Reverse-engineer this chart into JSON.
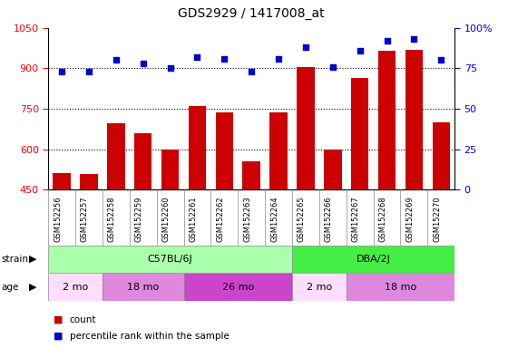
{
  "title": "GDS2929 / 1417008_at",
  "samples": [
    "GSM152256",
    "GSM152257",
    "GSM152258",
    "GSM152259",
    "GSM152260",
    "GSM152261",
    "GSM152262",
    "GSM152263",
    "GSM152264",
    "GSM152265",
    "GSM152266",
    "GSM152267",
    "GSM152268",
    "GSM152269",
    "GSM152270"
  ],
  "counts": [
    510,
    508,
    695,
    660,
    600,
    760,
    735,
    555,
    738,
    905,
    598,
    865,
    965,
    970,
    698
  ],
  "percentile": [
    73,
    73,
    80,
    78,
    75,
    82,
    81,
    73,
    81,
    88,
    76,
    86,
    92,
    93,
    80
  ],
  "ylim_left": [
    450,
    1050
  ],
  "ylim_right": [
    0,
    100
  ],
  "yticks_left": [
    450,
    600,
    750,
    900,
    1050
  ],
  "yticks_right": [
    0,
    25,
    50,
    75,
    100
  ],
  "ytick_labels_right": [
    "0",
    "25",
    "50",
    "75",
    "100%"
  ],
  "bar_color": "#cc0000",
  "dot_color": "#0000cc",
  "strain_groups": [
    {
      "label": "C57BL/6J",
      "start": 0,
      "end": 8,
      "color": "#aaffaa"
    },
    {
      "label": "DBA/2J",
      "start": 9,
      "end": 14,
      "color": "#44ee44"
    }
  ],
  "age_groups": [
    {
      "label": "2 mo",
      "start": 0,
      "end": 1,
      "color": "#ffddff"
    },
    {
      "label": "18 mo",
      "start": 2,
      "end": 4,
      "color": "#ee88ee"
    },
    {
      "label": "26 mo",
      "start": 5,
      "end": 8,
      "color": "#cc55cc"
    },
    {
      "label": "2 mo",
      "start": 9,
      "end": 10,
      "color": "#ffddff"
    },
    {
      "label": "18 mo",
      "start": 11,
      "end": 14,
      "color": "#ee88ee"
    }
  ],
  "legend_count_color": "#cc0000",
  "legend_pct_color": "#0000cc",
  "xtick_bg": "#c8c8c8",
  "xtick_border": "#888888"
}
